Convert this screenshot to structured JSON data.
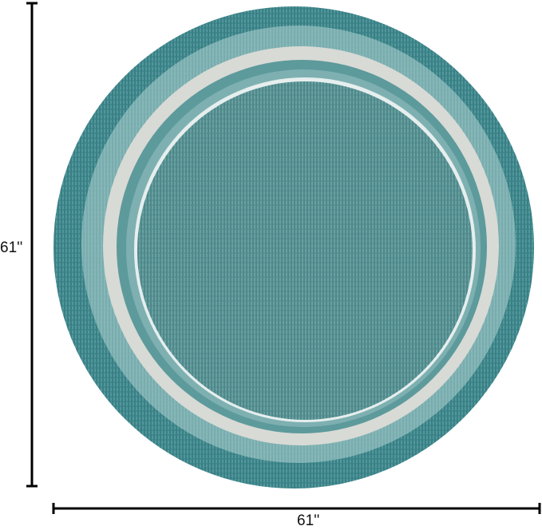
{
  "dimensions": {
    "height_label": "61''",
    "width_label": "61''"
  },
  "colors": {
    "outer_band": "#3f8a8f",
    "light_band": "#7fb3b4",
    "ivory_ring": "#d9dbd6",
    "field": "#5a9597",
    "line": "#000000"
  }
}
